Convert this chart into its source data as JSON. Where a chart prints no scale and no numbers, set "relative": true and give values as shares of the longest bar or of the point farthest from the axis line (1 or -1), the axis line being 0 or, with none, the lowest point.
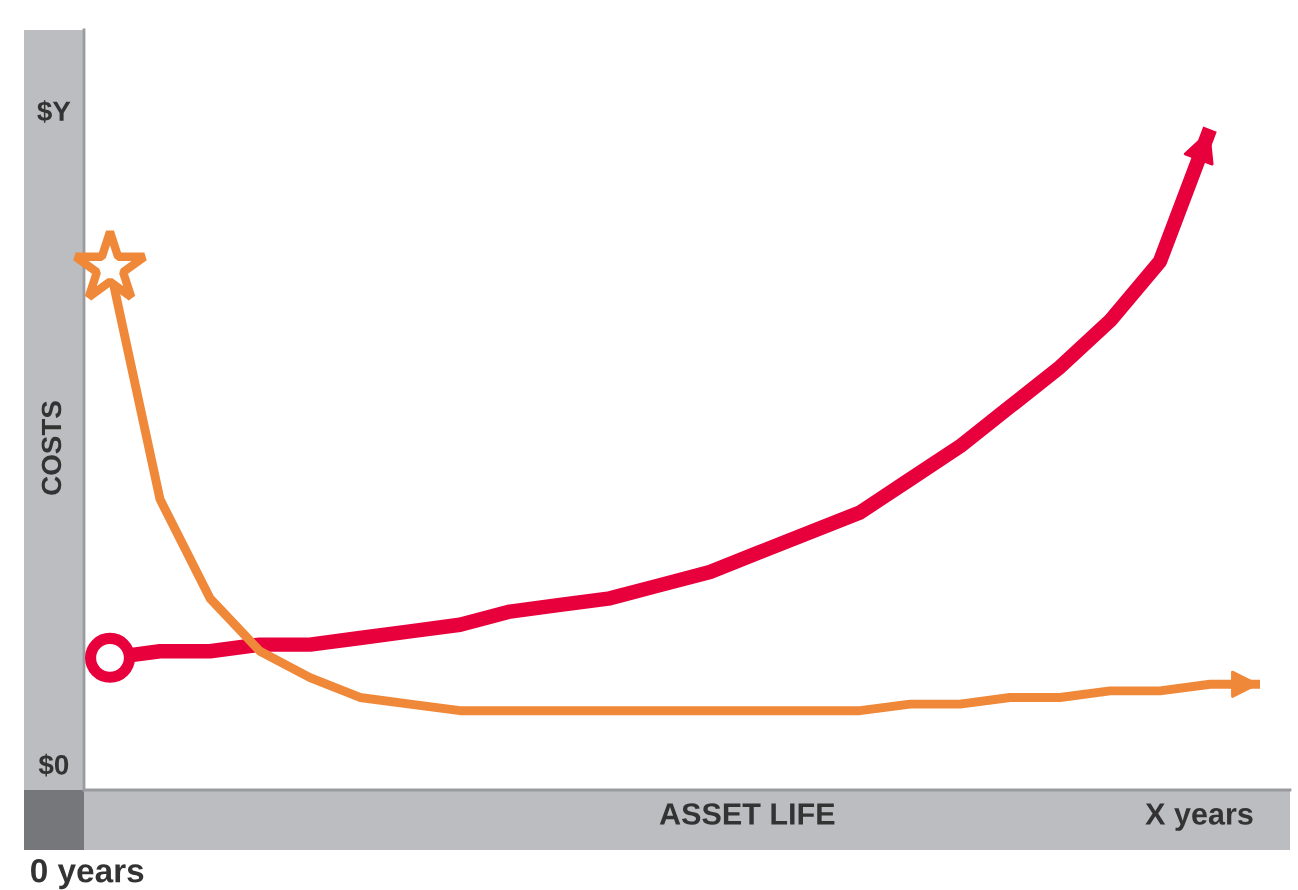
{
  "chart_data": {
    "type": "line",
    "relative": true,
    "xlabel": "ASSET LIFE",
    "ylabel": "COSTS",
    "categories": [
      null,
      null,
      null,
      null,
      null,
      null,
      null,
      null,
      null,
      null,
      null,
      null,
      null,
      null,
      null,
      null,
      null,
      null,
      null,
      null,
      null,
      null,
      null,
      null
    ],
    "series": [
      {
        "color": "#e8003d",
        "values": [
          0.2,
          0.21,
          0.21,
          0.22,
          0.22,
          0.23,
          0.24,
          0.25,
          0.27,
          0.28,
          0.29,
          0.31,
          0.33,
          0.36,
          0.39,
          0.42,
          0.47,
          0.52,
          0.58,
          0.64,
          0.71,
          0.8,
          1.0,
          null
        ]
      },
      {
        "color": "#f0883a",
        "values": [
          0.79,
          0.44,
          0.29,
          0.21,
          0.17,
          0.14,
          0.13,
          0.12,
          0.12,
          0.12,
          0.12,
          0.12,
          0.12,
          0.12,
          0.12,
          0.12,
          0.13,
          0.13,
          0.14,
          0.14,
          0.15,
          0.15,
          0.16,
          0.16
        ]
      }
    ],
    "annotations": [
      "$Y",
      "$0",
      "0 years",
      "X years"
    ],
    "grid": false,
    "legend": false,
    "marker": "none",
    "line_style": "solid"
  }
}
